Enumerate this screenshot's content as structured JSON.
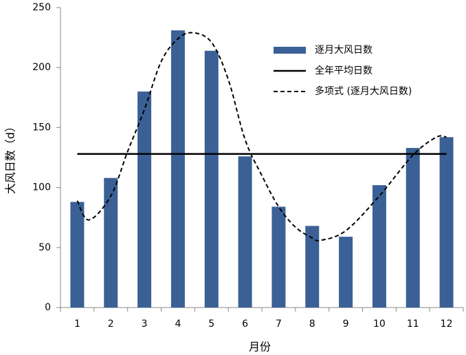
{
  "chart_data": {
    "type": "bar",
    "ylabel": "大风日数（d）",
    "xlabel": "月份",
    "categories": [
      "1",
      "2",
      "3",
      "4",
      "5",
      "6",
      "7",
      "8",
      "9",
      "10",
      "11",
      "12"
    ],
    "series": [
      {
        "name": "逐月大风日数",
        "type": "bar",
        "color": "#3a6096",
        "values": [
          88,
          108,
          180,
          231,
          214,
          126,
          84,
          68,
          59,
          102,
          133,
          142
        ]
      },
      {
        "name": "全年平均日数",
        "type": "line",
        "color": "#000000",
        "dash": false,
        "values": [
          128,
          128,
          128,
          128,
          128,
          128,
          128,
          128,
          128,
          128,
          128,
          128
        ]
      },
      {
        "name": "多项式 (逐月大风日数)",
        "type": "curve",
        "color": "#000000",
        "dash": true,
        "x": [
          1,
          1.35,
          2,
          2.5,
          3,
          3.5,
          4,
          4.45,
          5,
          5.5,
          6,
          6.5,
          7,
          7.5,
          8,
          8.25,
          9,
          10,
          11,
          11.7,
          12
        ],
        "values": [
          89,
          73,
          93,
          130,
          165,
          205,
          224,
          229,
          221,
          190,
          140,
          110,
          84,
          67,
          58,
          56,
          64,
          93,
          127,
          142,
          142
        ]
      }
    ],
    "ylim": [
      0,
      250
    ],
    "yticks": [
      0,
      50,
      100,
      150,
      200,
      250
    ],
    "grid": false,
    "legend": "upper right"
  }
}
